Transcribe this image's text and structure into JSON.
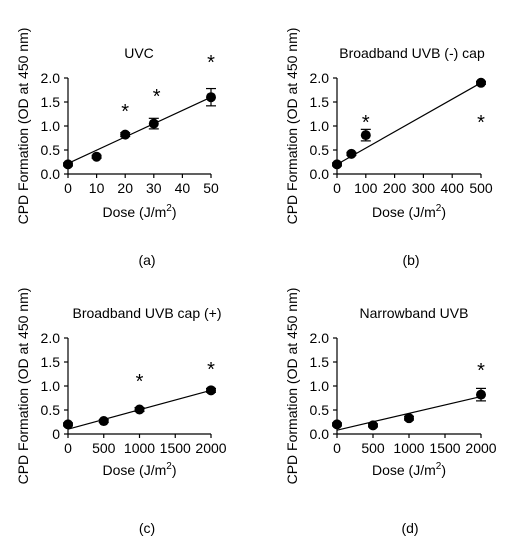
{
  "chart_data": [
    {
      "type": "scatter",
      "panel_label": "(a)",
      "title": "UVC",
      "xlabel": "Dose (J/m2)",
      "ylabel": "CPD Formation (OD at 450 nm)",
      "xlim": [
        0,
        50
      ],
      "ylim": [
        0,
        2.0
      ],
      "x_ticks": [
        0,
        10,
        20,
        30,
        40,
        50
      ],
      "y_ticks": [
        0.0,
        0.5,
        1.0,
        1.5,
        2.0
      ],
      "y_tick_labels": [
        "0.0",
        "0.5",
        "1.0",
        "1.5",
        "2.0"
      ],
      "points": [
        {
          "x": 0,
          "y": 0.2,
          "err": 0.03
        },
        {
          "x": 10,
          "y": 0.36,
          "err": 0.03
        },
        {
          "x": 20,
          "y": 0.82,
          "err": 0.04
        },
        {
          "x": 30,
          "y": 1.05,
          "err": 0.11
        },
        {
          "x": 50,
          "y": 1.6,
          "err": 0.18
        }
      ],
      "fit_line": {
        "x": [
          0,
          50
        ],
        "y": [
          0.22,
          1.6
        ]
      },
      "significance": [
        {
          "x": 20,
          "y": 1.33,
          "label": "*"
        },
        {
          "x": 31,
          "y": 1.65,
          "label": "*"
        },
        {
          "x": 50,
          "y": 2.35,
          "label": "*"
        }
      ]
    },
    {
      "type": "scatter",
      "panel_label": "(b)",
      "title": "Broadband UVB (-) cap",
      "xlabel": "Dose (J/m2)",
      "ylabel": "CPD Formation (OD at 450 nm)",
      "xlim": [
        0,
        500
      ],
      "ylim": [
        0,
        2.0
      ],
      "x_ticks": [
        0,
        100,
        200,
        300,
        400,
        500
      ],
      "y_ticks": [
        0.0,
        0.5,
        1.0,
        1.5,
        2.0
      ],
      "y_tick_labels": [
        "0.0",
        "0.5",
        "1.0",
        "1.5",
        "2.0"
      ],
      "points": [
        {
          "x": 0,
          "y": 0.2,
          "err": 0.03
        },
        {
          "x": 50,
          "y": 0.42,
          "err": 0.03
        },
        {
          "x": 100,
          "y": 0.81,
          "err": 0.12
        },
        {
          "x": 500,
          "y": 1.9,
          "err": 0.03
        }
      ],
      "fit_line": {
        "x": [
          0,
          500
        ],
        "y": [
          0.2,
          1.9
        ]
      },
      "significance": [
        {
          "x": 100,
          "y": 1.1,
          "label": "*"
        },
        {
          "x": 500,
          "y": 1.1,
          "label": "*"
        }
      ]
    },
    {
      "type": "scatter",
      "panel_label": "(c)",
      "title": "Broadband UVB cap (+)",
      "xlabel": "Dose (J/m2)",
      "ylabel": "CPD Formation (OD at 450 nm)",
      "xlim": [
        0,
        2000
      ],
      "ylim": [
        0,
        2.0
      ],
      "x_ticks": [
        0,
        500,
        1000,
        1500,
        2000
      ],
      "y_ticks": [
        0.0,
        0.5,
        1.0,
        1.5,
        2.0
      ],
      "y_tick_labels": [
        "0",
        "0.5",
        "1.0",
        "1.5",
        "2.0"
      ],
      "points": [
        {
          "x": 0,
          "y": 0.2,
          "err": 0.03
        },
        {
          "x": 500,
          "y": 0.27,
          "err": 0.03
        },
        {
          "x": 1000,
          "y": 0.51,
          "err": 0.04
        },
        {
          "x": 2000,
          "y": 0.91,
          "err": 0.04
        }
      ],
      "fit_line": {
        "x": [
          0,
          2000
        ],
        "y": [
          0.1,
          0.91
        ]
      },
      "significance": [
        {
          "x": 1000,
          "y": 1.12,
          "label": "*"
        },
        {
          "x": 2000,
          "y": 1.38,
          "label": "*"
        }
      ]
    },
    {
      "type": "scatter",
      "panel_label": "(d)",
      "title": "Narrowband UVB",
      "xlabel": "Dose (J/m2)",
      "ylabel": "CPD Formation (OD at 450 nm)",
      "xlim": [
        0,
        2000
      ],
      "ylim": [
        0,
        2.0
      ],
      "x_ticks": [
        0,
        500,
        1000,
        1500,
        2000
      ],
      "y_ticks": [
        0.0,
        0.5,
        1.0,
        1.5,
        2.0
      ],
      "y_tick_labels": [
        "0.0",
        "0.5",
        "1.0",
        "1.5",
        "2.0"
      ],
      "points": [
        {
          "x": 0,
          "y": 0.2,
          "err": 0.03
        },
        {
          "x": 500,
          "y": 0.18,
          "err": 0.03
        },
        {
          "x": 1000,
          "y": 0.33,
          "err": 0.04
        },
        {
          "x": 2000,
          "y": 0.82,
          "err": 0.13
        }
      ],
      "fit_line": {
        "x": [
          0,
          2000
        ],
        "y": [
          0.08,
          0.78
        ]
      },
      "significance": [
        {
          "x": 2000,
          "y": 1.35,
          "label": "*"
        }
      ]
    }
  ]
}
